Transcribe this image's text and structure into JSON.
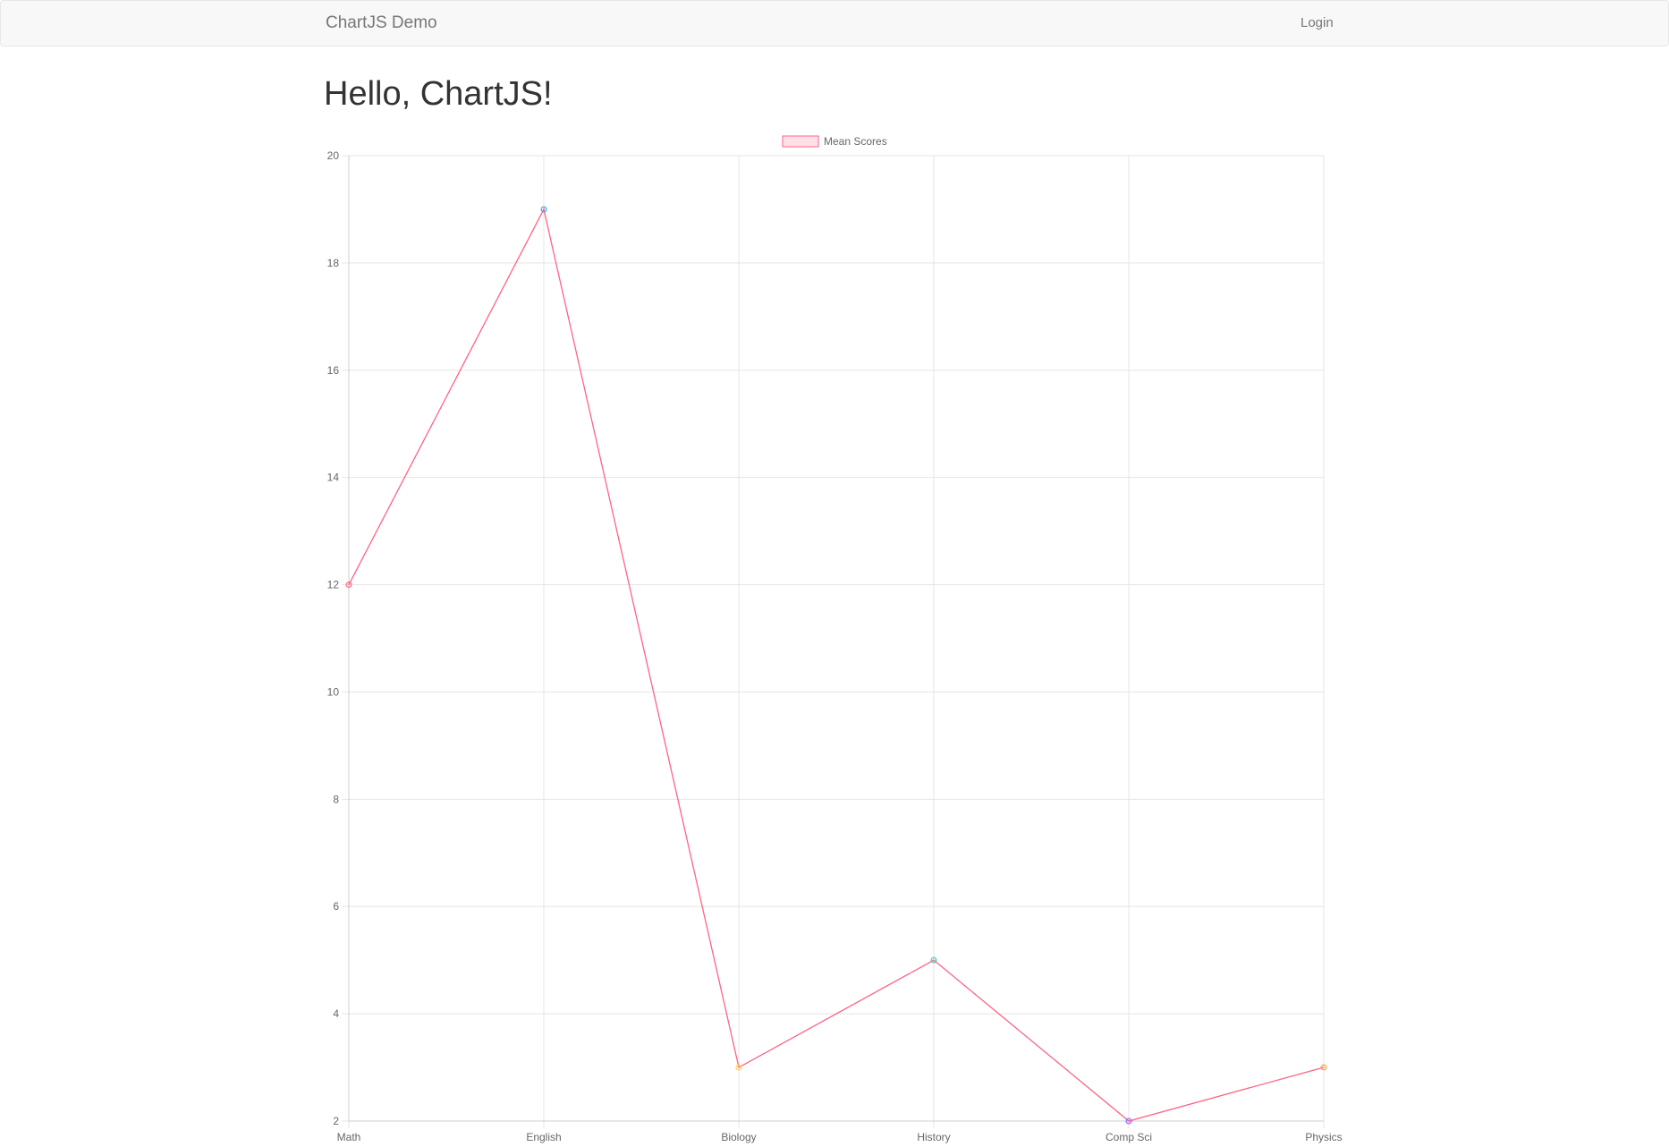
{
  "navbar": {
    "brand": "ChartJS Demo",
    "login": "Login"
  },
  "page": {
    "title": "Hello, ChartJS!"
  },
  "colors": {
    "line": "#ff6384",
    "legend_fill": "#ffe0e6",
    "grid": "#e5e5e5",
    "axis": "#cfcfcf",
    "tick": "#666666",
    "points": [
      "#ff6384",
      "#36a2eb",
      "#ffce56",
      "#4bc0c0",
      "#9966ff",
      "#ff9f40"
    ]
  },
  "chart_data": {
    "type": "line",
    "title": "",
    "legend": {
      "position": "top-center",
      "entries": [
        "Mean Scores"
      ]
    },
    "categories": [
      "Math",
      "English",
      "Biology",
      "History",
      "Comp Sci",
      "Physics"
    ],
    "series": [
      {
        "name": "Mean Scores",
        "values": [
          12,
          19,
          3,
          5,
          2,
          3
        ]
      }
    ],
    "ylim": [
      2,
      20
    ],
    "yticks": [
      2,
      4,
      6,
      8,
      10,
      12,
      14,
      16,
      18,
      20
    ],
    "grid": true,
    "xlabel": "",
    "ylabel": ""
  }
}
